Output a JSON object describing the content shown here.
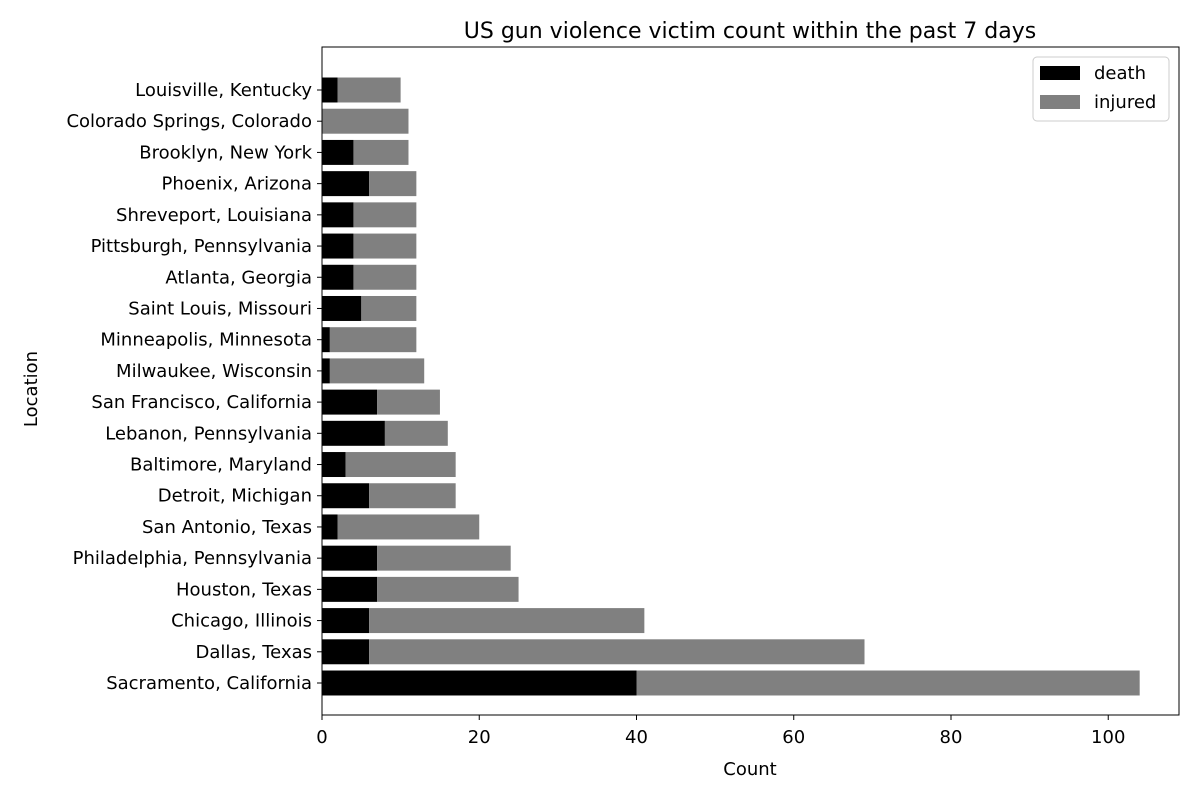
{
  "chart_data": {
    "type": "bar",
    "orientation": "horizontal",
    "stacked": true,
    "title": "US gun violence victim count within the past 7 days",
    "xlabel": "Count",
    "ylabel": "Location",
    "xlim": [
      0,
      109
    ],
    "xticks": [
      0,
      20,
      40,
      60,
      80,
      100
    ],
    "grid": false,
    "legend_position": "top-right",
    "categories": [
      "Sacramento, California",
      "Dallas, Texas",
      "Chicago, Illinois",
      "Houston, Texas",
      "Philadelphia, Pennsylvania",
      "San Antonio, Texas",
      "Detroit, Michigan",
      "Baltimore, Maryland",
      "Lebanon, Pennsylvania",
      "San Francisco, California",
      "Milwaukee, Wisconsin",
      "Minneapolis, Minnesota",
      "Saint Louis, Missouri",
      "Atlanta, Georgia",
      "Pittsburgh, Pennsylvania",
      "Shreveport, Louisiana",
      "Phoenix, Arizona",
      "Brooklyn, New York",
      "Colorado Springs, Colorado",
      "Louisville, Kentucky"
    ],
    "series": [
      {
        "name": "death",
        "color": "#000000",
        "values": [
          40,
          6,
          6,
          7,
          7,
          2,
          6,
          3,
          8,
          7,
          1,
          1,
          5,
          4,
          4,
          4,
          6,
          4,
          0,
          2
        ]
      },
      {
        "name": "injured",
        "color": "#808080",
        "values": [
          64,
          63,
          35,
          18,
          17,
          18,
          11,
          14,
          8,
          8,
          12,
          11,
          7,
          8,
          8,
          8,
          6,
          7,
          11,
          8
        ]
      }
    ]
  }
}
